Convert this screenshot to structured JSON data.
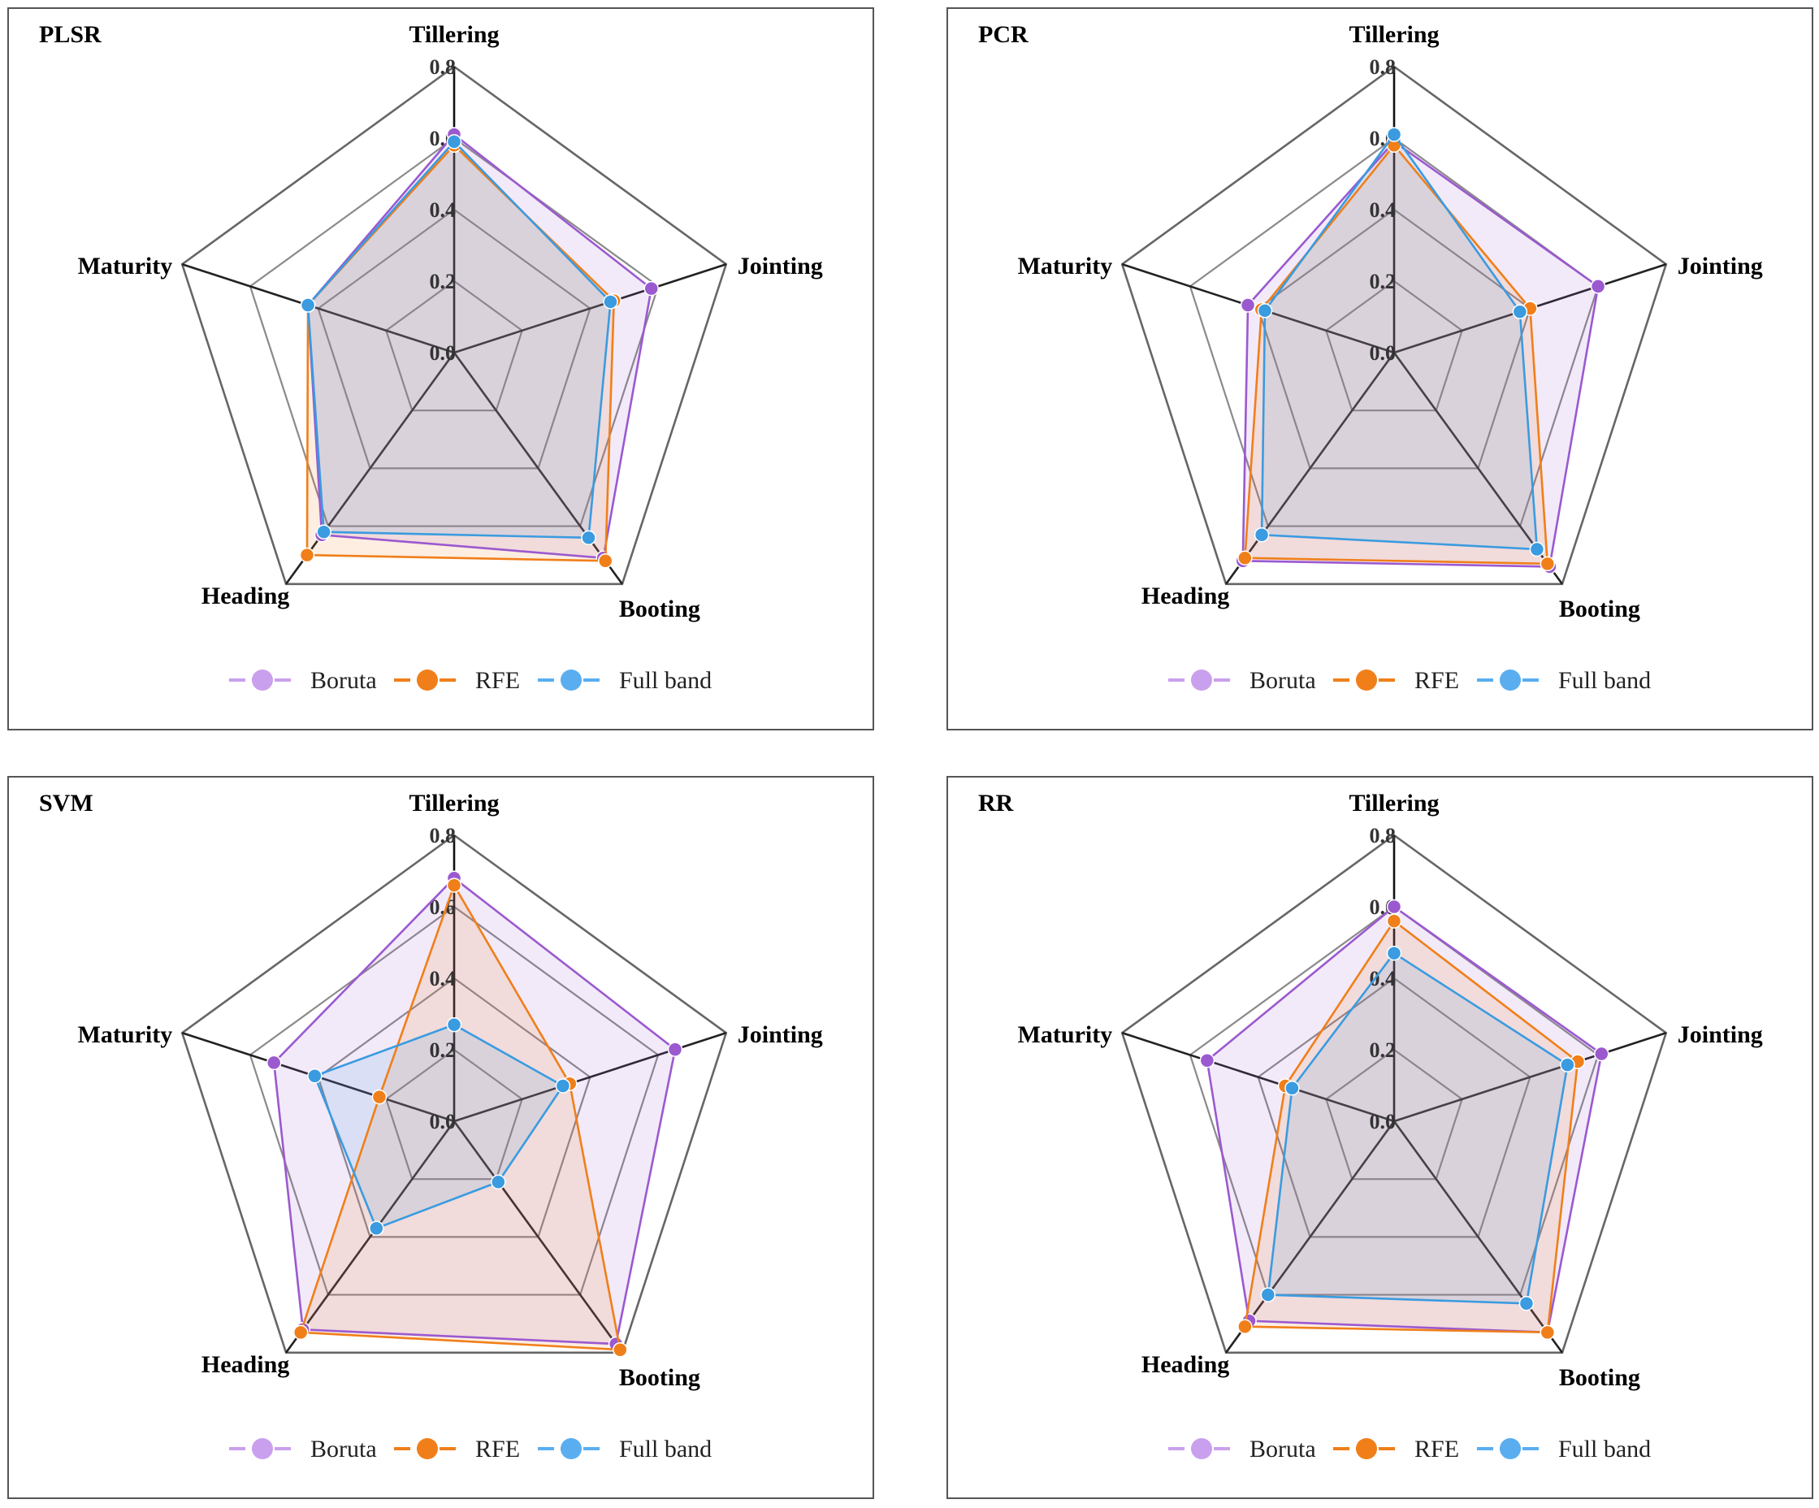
{
  "chart_data": [
    {
      "type": "radar",
      "title": "PLSR",
      "axes": [
        "Tillering",
        "Jointing",
        "Booting",
        "Heading",
        "Maturity"
      ],
      "rlim": [
        0,
        0.8
      ],
      "ticks": [
        "0.0",
        "0.2",
        "0.4",
        "0.6",
        "0.8"
      ],
      "series": [
        {
          "name": "Boruta",
          "values": [
            0.61,
            0.58,
            0.71,
            0.63,
            0.43
          ]
        },
        {
          "name": "RFE",
          "values": [
            0.58,
            0.47,
            0.72,
            0.7,
            0.43
          ]
        },
        {
          "name": "Full band",
          "values": [
            0.59,
            0.46,
            0.64,
            0.62,
            0.43
          ]
        }
      ],
      "legend": [
        "Boruta",
        "RFE",
        "Full band"
      ]
    },
    {
      "type": "radar",
      "title": "PCR",
      "axes": [
        "Tillering",
        "Jointing",
        "Booting",
        "Heading",
        "Maturity"
      ],
      "rlim": [
        0,
        0.8
      ],
      "ticks": [
        "0.0",
        "0.2",
        "0.4",
        "0.6",
        "0.8"
      ],
      "series": [
        {
          "name": "Boruta",
          "values": [
            0.59,
            0.6,
            0.74,
            0.72,
            0.43
          ]
        },
        {
          "name": "RFE",
          "values": [
            0.58,
            0.4,
            0.73,
            0.71,
            0.39
          ]
        },
        {
          "name": "Full band",
          "values": [
            0.61,
            0.37,
            0.68,
            0.63,
            0.38
          ]
        }
      ],
      "legend": [
        "Boruta",
        "RFE",
        "Full band"
      ]
    },
    {
      "type": "radar",
      "title": "SVM",
      "axes": [
        "Tillering",
        "Jointing",
        "Booting",
        "Heading",
        "Maturity"
      ],
      "rlim": [
        0,
        0.8
      ],
      "ticks": [
        "0.0",
        "0.2",
        "0.4",
        "0.6",
        "0.8"
      ],
      "series": [
        {
          "name": "Boruta",
          "values": [
            0.68,
            0.65,
            0.77,
            0.72,
            0.53
          ]
        },
        {
          "name": "RFE",
          "values": [
            0.66,
            0.34,
            0.79,
            0.73,
            0.22
          ]
        },
        {
          "name": "Full band",
          "values": [
            0.27,
            0.32,
            0.21,
            0.37,
            0.41
          ]
        }
      ],
      "legend": [
        "Boruta",
        "RFE",
        "Full band"
      ]
    },
    {
      "type": "radar",
      "title": "RR",
      "axes": [
        "Tillering",
        "Jointing",
        "Booting",
        "Heading",
        "Maturity"
      ],
      "rlim": [
        0,
        0.8
      ],
      "ticks": [
        "0.0",
        "0.2",
        "0.4",
        "0.6",
        "0.8"
      ],
      "series": [
        {
          "name": "Boruta",
          "values": [
            0.6,
            0.61,
            0.73,
            0.69,
            0.55
          ]
        },
        {
          "name": "RFE",
          "values": [
            0.56,
            0.54,
            0.73,
            0.71,
            0.32
          ]
        },
        {
          "name": "Full band",
          "values": [
            0.47,
            0.51,
            0.63,
            0.6,
            0.3
          ]
        }
      ],
      "legend": [
        "Boruta",
        "RFE",
        "Full band"
      ]
    }
  ],
  "colors": {
    "Boruta": "#9b59d0",
    "RFE": "#f07f1a",
    "Full band": "#3a9be0",
    "Boruta_legend": "#c9a0ee",
    "RFE_legend": "#f07f1a",
    "Full band_legend": "#5aaef0"
  }
}
